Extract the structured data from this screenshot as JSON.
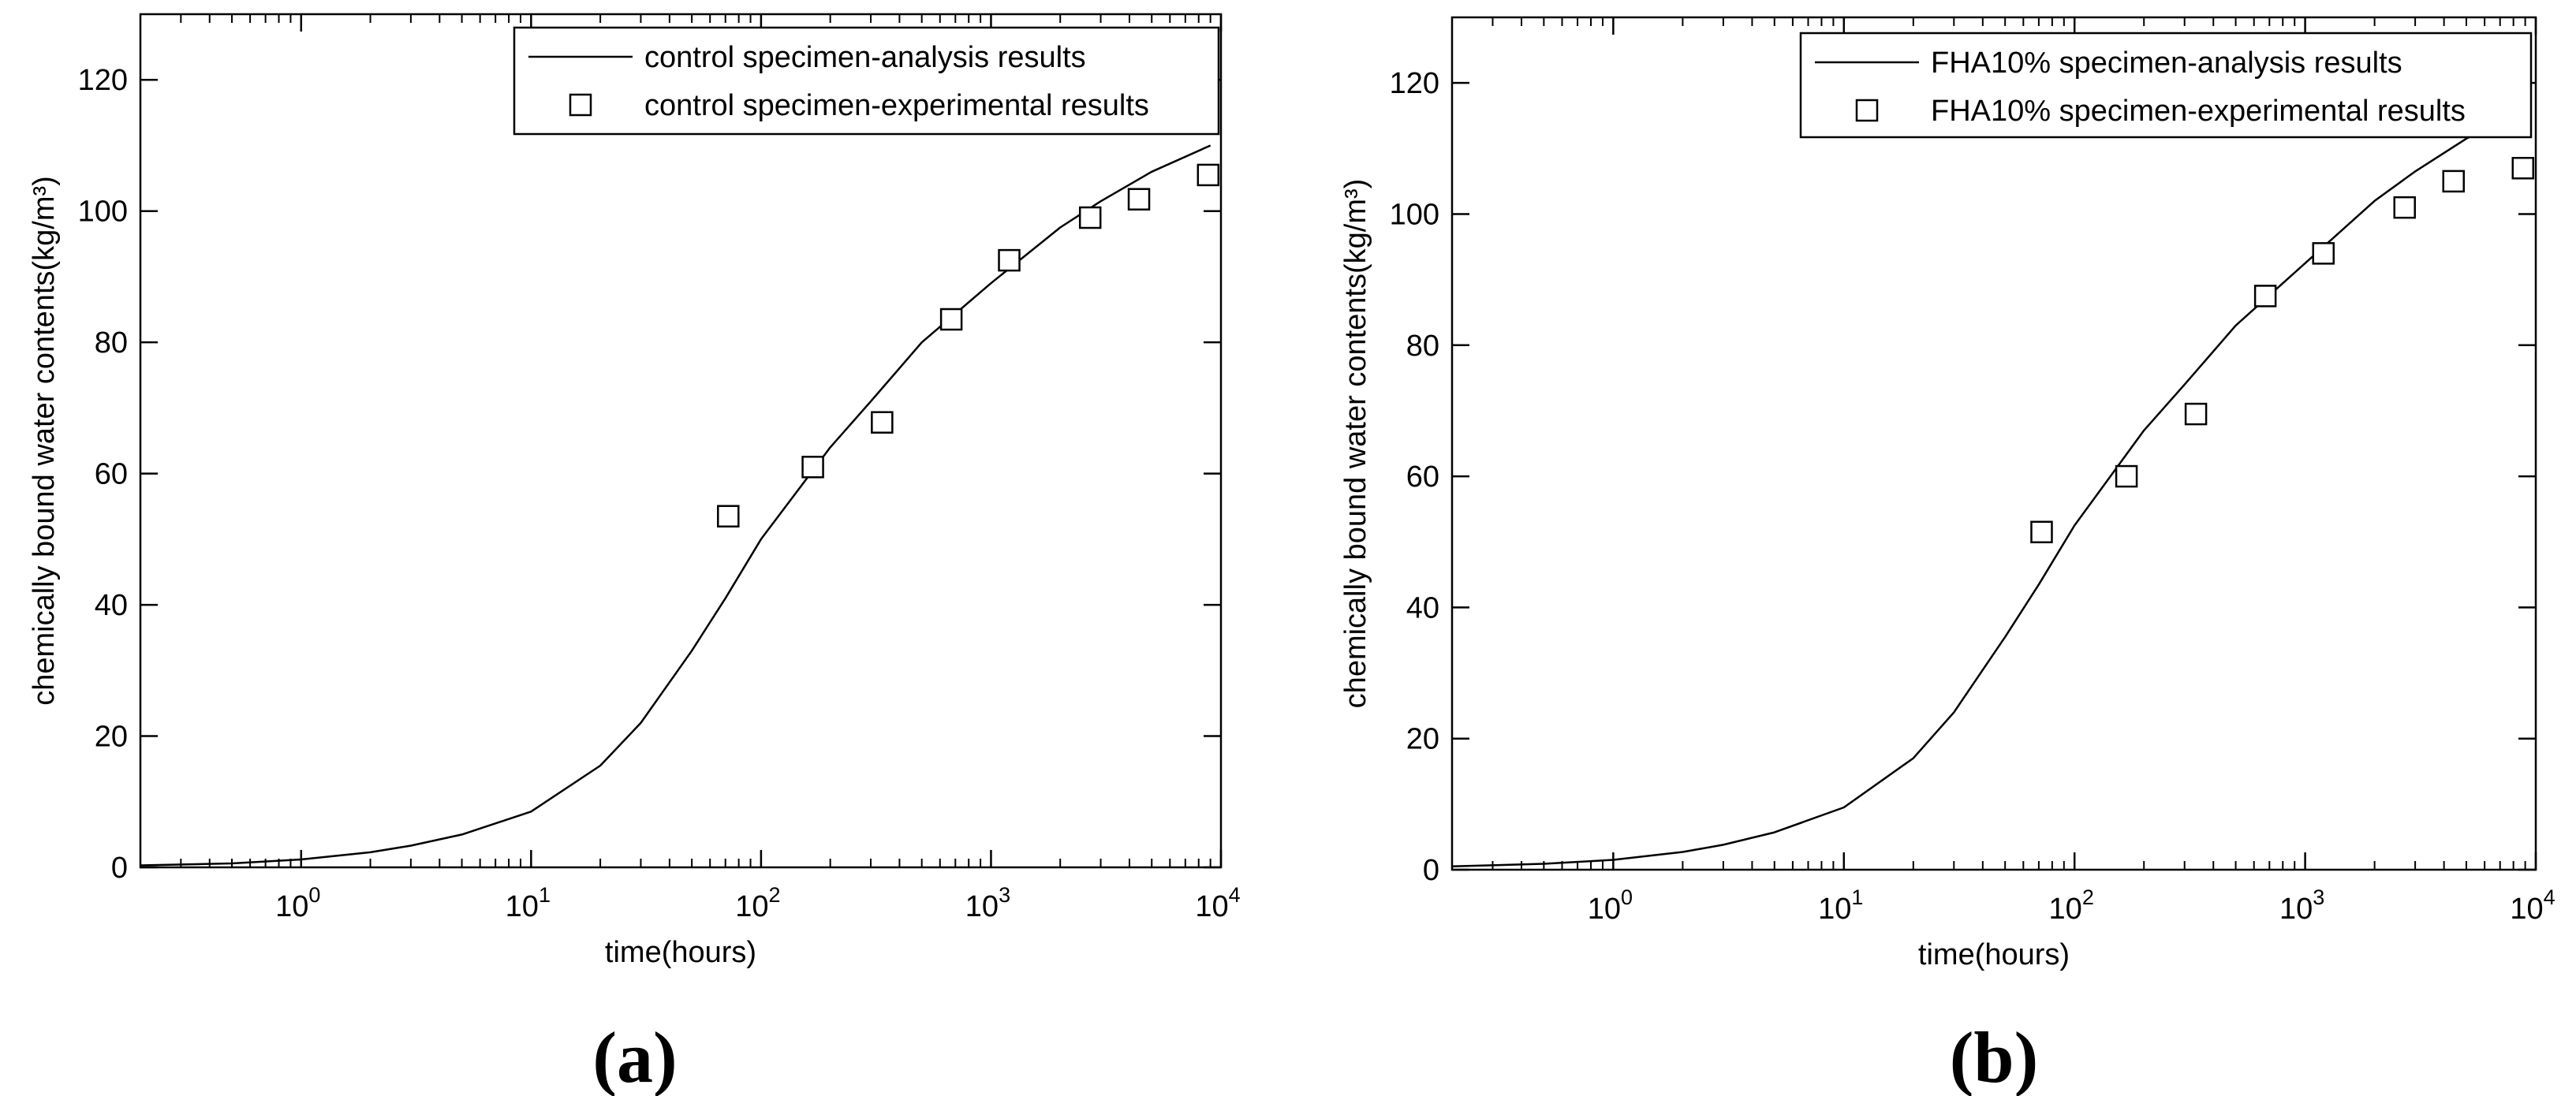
{
  "chart_data": [
    {
      "type": "line",
      "panel_label": "(a)",
      "xlabel": "time(hours)",
      "ylabel": "chemically bound water contents(kg/m³)",
      "xscale": "log",
      "xlim": [
        0.2,
        10000
      ],
      "ylim": [
        0,
        130
      ],
      "x_ticks": [
        1,
        10,
        100,
        1000,
        10000
      ],
      "x_tick_labels": [
        "10^0",
        "10^1",
        "10^2",
        "10^3",
        "10^4"
      ],
      "y_ticks": [
        0,
        20,
        40,
        60,
        80,
        100,
        120
      ],
      "legend_position": "top-right",
      "series": [
        {
          "name": "control specimen-analysis results",
          "kind": "line",
          "x": [
            0.2,
            0.5,
            1,
            2,
            3,
            5,
            10,
            20,
            30,
            50,
            70,
            100,
            200,
            300,
            500,
            1000,
            2000,
            3000,
            5000,
            9000
          ],
          "y": [
            0.3,
            0.6,
            1.2,
            2.3,
            3.3,
            5.0,
            8.5,
            15.5,
            22.0,
            33.0,
            41.0,
            50.0,
            64.0,
            71.0,
            80.0,
            89.0,
            97.5,
            101.5,
            106.0,
            110.0
          ]
        },
        {
          "name": "control specimen-experimental results",
          "kind": "scatter",
          "marker": "square",
          "x": [
            72,
            168,
            336,
            672,
            1200,
            2700,
            4400,
            8800
          ],
          "y": [
            53.5,
            61.0,
            67.8,
            83.5,
            92.5,
            99.0,
            101.8,
            105.5
          ]
        }
      ]
    },
    {
      "type": "line",
      "panel_label": "(b)",
      "xlabel": "time(hours)",
      "ylabel": "chemically bound water contents(kg/m³)",
      "xscale": "log",
      "xlim": [
        0.2,
        10000
      ],
      "ylim": [
        0,
        130
      ],
      "x_ticks": [
        1,
        10,
        100,
        1000,
        10000
      ],
      "x_tick_labels": [
        "10^0",
        "10^1",
        "10^2",
        "10^3",
        "10^4"
      ],
      "y_ticks": [
        0,
        20,
        40,
        60,
        80,
        100,
        120
      ],
      "legend_position": "top-right",
      "series": [
        {
          "name": "FHA10% specimen-analysis results",
          "kind": "line",
          "x": [
            0.2,
            0.5,
            1,
            2,
            3,
            5,
            10,
            20,
            30,
            50,
            70,
            100,
            200,
            300,
            500,
            1000,
            2000,
            3000,
            5000,
            9000
          ],
          "y": [
            0.5,
            0.9,
            1.5,
            2.7,
            3.8,
            5.7,
            9.5,
            17.0,
            24.0,
            35.5,
            43.5,
            52.5,
            67.0,
            74.0,
            83.0,
            92.5,
            102.0,
            106.5,
            111.5,
            116.0
          ]
        },
        {
          "name": "FHA10% specimen-experimental results",
          "kind": "scatter",
          "marker": "square",
          "x": [
            72,
            168,
            336,
            672,
            1200,
            2700,
            4400,
            8800
          ],
          "y": [
            51.5,
            60.0,
            69.5,
            87.5,
            94.0,
            101.0,
            105.0,
            107.0
          ]
        }
      ]
    }
  ]
}
